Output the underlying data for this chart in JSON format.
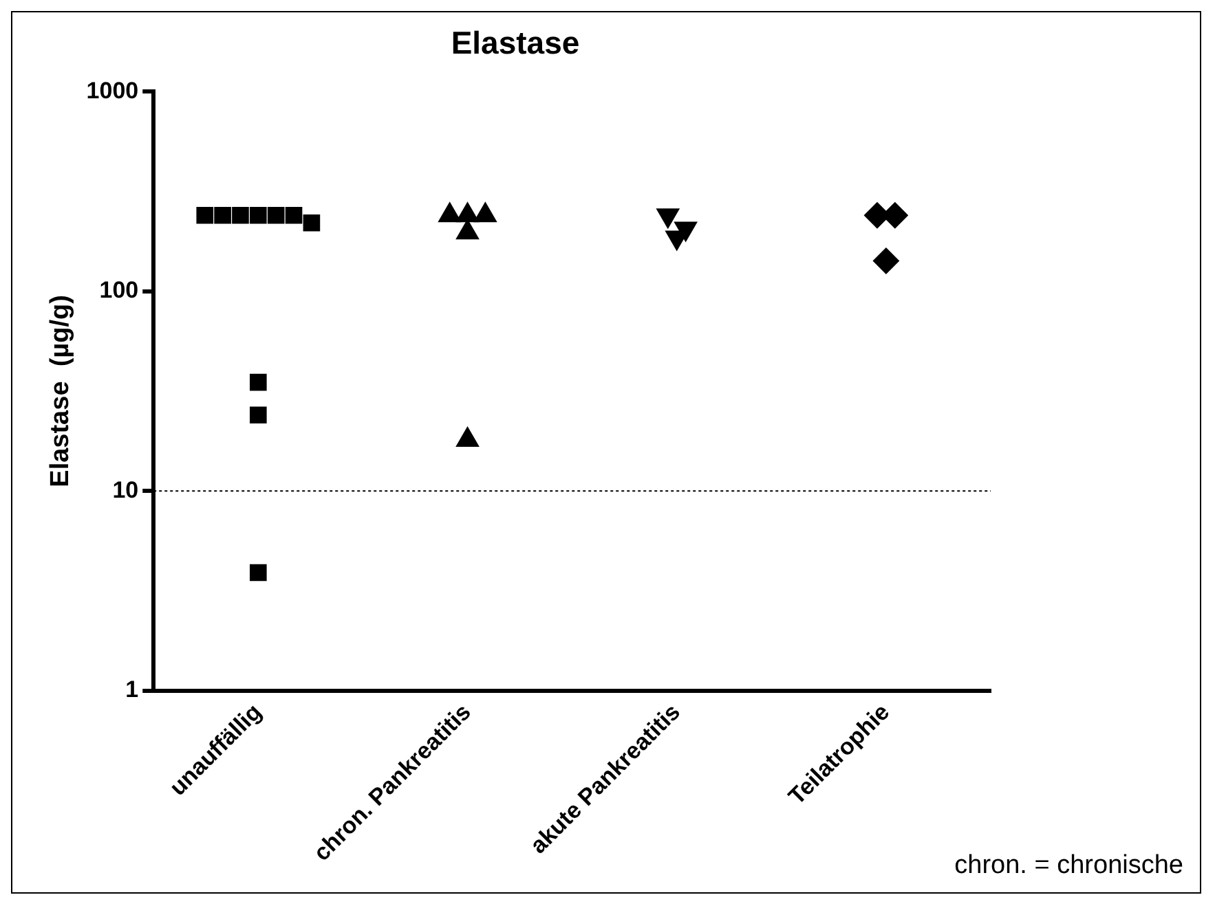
{
  "chart_data": {
    "type": "scatter",
    "title": "Elastase",
    "ylabel": "Elastase  (µg/g)",
    "categories": [
      "unauffällig",
      "chron. Pankreatitis",
      "akute Pankreatitis",
      "Teilatrophie"
    ],
    "series": [
      {
        "color": "#000000",
        "marker": "square",
        "x": [
          "unauffällig",
          "unauffällig",
          "unauffällig",
          "unauffällig",
          "unauffällig",
          "unauffällig",
          "unauffällig",
          "unauffällig",
          "unauffällig",
          "unauffällig"
        ],
        "values": [
          240,
          240,
          240,
          240,
          240,
          240,
          220,
          35,
          24,
          3.9
        ]
      },
      {
        "color": "#000000",
        "marker": "triangle",
        "x": [
          "chron. Pankreatitis",
          "chron. Pankreatitis",
          "chron. Pankreatitis",
          "chron. Pankreatitis",
          "chron. Pankreatitis"
        ],
        "values": [
          240,
          240,
          240,
          197,
          18
        ]
      },
      {
        "color": "#000000",
        "marker": "triangle-down",
        "x": [
          "akute Pankreatitis",
          "akute Pankreatitis",
          "akute Pankreatitis"
        ],
        "values": [
          240,
          206,
          186
        ]
      },
      {
        "color": "#000000",
        "marker": "diamond",
        "x": [
          "Teilatrophie",
          "Teilatrophie",
          "Teilatrophie"
        ],
        "values": [
          240,
          240,
          142
        ]
      }
    ],
    "log": "y",
    "ylim": [
      1,
      1000
    ],
    "yticks": [
      1,
      10,
      100,
      1000
    ],
    "grid": false,
    "legend": false,
    "ref_lines": [
      {
        "axis": "y",
        "value": 10,
        "line_style": "dotted",
        "color": "#000000"
      }
    ],
    "annotations": [
      "chron. = chronische"
    ]
  }
}
